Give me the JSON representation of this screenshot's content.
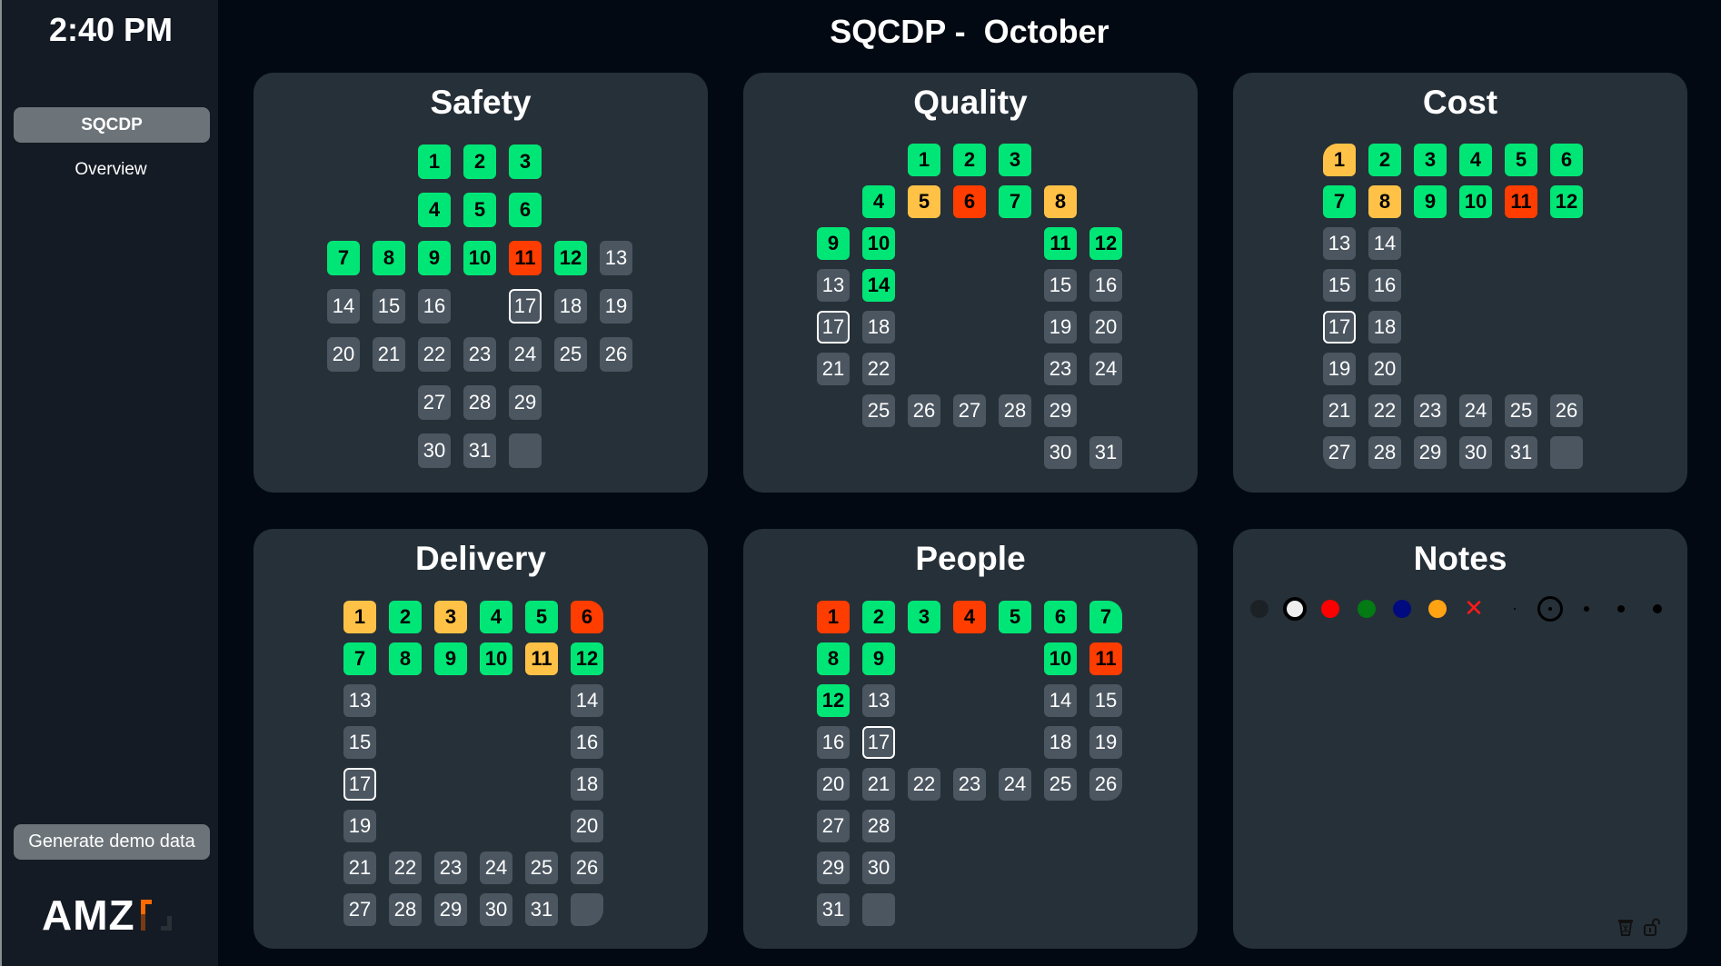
{
  "sidebar": {
    "time": "2:40 PM",
    "nav": [
      {
        "label": "SQCDP",
        "active": true
      },
      {
        "label": "Overview",
        "active": false
      }
    ],
    "demo_button": "Generate demo data",
    "logo": "AMZ"
  },
  "header": {
    "title": "SQCDP -  October"
  },
  "status_colors": {
    "green": "#00e676",
    "orange": "#ffc247",
    "red": "#ff3d00",
    "none": "#4b5660"
  },
  "today": 17,
  "panels": [
    {
      "id": "safety",
      "title": "Safety",
      "days": [
        "g",
        "g",
        "g",
        "g",
        "g",
        "g",
        "g",
        "g",
        "g",
        "g",
        "r",
        "g",
        "n",
        "n",
        "n",
        "n",
        "n",
        "n",
        "n",
        "n",
        "n",
        "n",
        "n",
        "n",
        "n",
        "n",
        "n",
        "n",
        "n",
        "n",
        "n"
      ]
    },
    {
      "id": "quality",
      "title": "Quality",
      "days": [
        "g",
        "g",
        "g",
        "g",
        "o",
        "r",
        "g",
        "o",
        "g",
        "g",
        "g",
        "g",
        "n",
        "g",
        "n",
        "n",
        "n",
        "n",
        "n",
        "n",
        "n",
        "n",
        "n",
        "n",
        "n",
        "n",
        "n",
        "n",
        "n",
        "n",
        "n"
      ]
    },
    {
      "id": "cost",
      "title": "Cost",
      "days": [
        "o",
        "g",
        "g",
        "g",
        "g",
        "g",
        "g",
        "o",
        "g",
        "g",
        "r",
        "g",
        "n",
        "n",
        "n",
        "n",
        "n",
        "n",
        "n",
        "n",
        "n",
        "n",
        "n",
        "n",
        "n",
        "n",
        "n",
        "n",
        "n",
        "n",
        "n"
      ]
    },
    {
      "id": "delivery",
      "title": "Delivery",
      "days": [
        "o",
        "g",
        "o",
        "g",
        "g",
        "r",
        "g",
        "g",
        "g",
        "g",
        "o",
        "g",
        "n",
        "n",
        "n",
        "n",
        "n",
        "n",
        "n",
        "n",
        "n",
        "n",
        "n",
        "n",
        "n",
        "n",
        "n",
        "n",
        "n",
        "n",
        "n"
      ]
    },
    {
      "id": "people",
      "title": "People",
      "days": [
        "r",
        "g",
        "g",
        "r",
        "g",
        "g",
        "g",
        "g",
        "g",
        "g",
        "r",
        "g",
        "n",
        "n",
        "n",
        "n",
        "n",
        "n",
        "n",
        "n",
        "n",
        "n",
        "n",
        "n",
        "n",
        "n",
        "n",
        "n",
        "n",
        "n",
        "n"
      ]
    }
  ],
  "notes": {
    "title": "Notes",
    "colors": [
      "#1c2126",
      "#eeeeee",
      "#ff0000",
      "#037a14",
      "#020a80",
      "#ffa313"
    ],
    "selected_color": "#eeeeee",
    "eraser_icon": "x-icon",
    "pen_sizes": [
      1,
      2,
      3,
      4,
      5
    ],
    "selected_pen_size": 2,
    "footer_icons": [
      "trash-icon",
      "unlock-icon"
    ]
  }
}
